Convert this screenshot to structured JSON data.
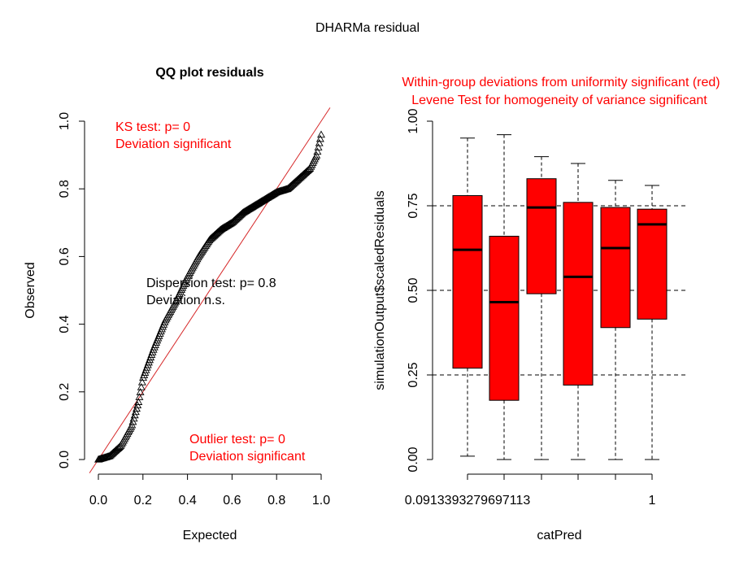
{
  "main_title": "DHARMa residual",
  "colors": {
    "axis": "#000000",
    "accent": "#ff0000",
    "box_fill": "#ff0000",
    "points": "#000000",
    "refline": "#d62728"
  },
  "chart_data": [
    {
      "type": "scatter",
      "title": "QQ plot residuals",
      "xlabel": "Expected",
      "ylabel": "Observed",
      "xlim": [
        0,
        1
      ],
      "ylim": [
        0,
        1
      ],
      "x_ticks": [
        "0.0",
        "0.2",
        "0.4",
        "0.6",
        "0.8",
        "1.0"
      ],
      "y_ticks": [
        "0.0",
        "0.2",
        "0.4",
        "0.6",
        "0.8",
        "1.0"
      ],
      "reference_line": "y = x",
      "marker": "triangle",
      "curve_points": [
        {
          "x": 0.0,
          "y": 0.0
        },
        {
          "x": 0.05,
          "y": 0.01
        },
        {
          "x": 0.1,
          "y": 0.04
        },
        {
          "x": 0.15,
          "y": 0.1
        },
        {
          "x": 0.18,
          "y": 0.17
        },
        {
          "x": 0.2,
          "y": 0.24
        },
        {
          "x": 0.25,
          "y": 0.33
        },
        {
          "x": 0.3,
          "y": 0.41
        },
        {
          "x": 0.35,
          "y": 0.47
        },
        {
          "x": 0.4,
          "y": 0.54
        },
        {
          "x": 0.45,
          "y": 0.6
        },
        {
          "x": 0.5,
          "y": 0.65
        },
        {
          "x": 0.55,
          "y": 0.68
        },
        {
          "x": 0.6,
          "y": 0.7
        },
        {
          "x": 0.65,
          "y": 0.73
        },
        {
          "x": 0.7,
          "y": 0.75
        },
        {
          "x": 0.75,
          "y": 0.77
        },
        {
          "x": 0.8,
          "y": 0.79
        },
        {
          "x": 0.85,
          "y": 0.8
        },
        {
          "x": 0.9,
          "y": 0.83
        },
        {
          "x": 0.95,
          "y": 0.86
        },
        {
          "x": 0.98,
          "y": 0.9
        },
        {
          "x": 1.0,
          "y": 0.96
        }
      ],
      "annotations": {
        "ks_line1": "KS test: p= 0",
        "ks_line2": "Deviation  significant",
        "dispersion_line1": "Dispersion test: p= 0.8",
        "dispersion_line2": "Deviation  n.s.",
        "outlier_line1": "Outlier test: p= 0",
        "outlier_line2": "Deviation  significant"
      }
    },
    {
      "type": "boxplot",
      "title_line1": "Within-group deviations from uniformity significant (red)",
      "title_line2": "Levene Test for homogeneity of variance significant",
      "xlabel": "catPred",
      "ylabel": "simulationOutput$scaledResiduals",
      "ylim": [
        0,
        1
      ],
      "y_ticks": [
        "0.00",
        "0.25",
        "0.50",
        "0.75",
        "1.00"
      ],
      "x_tick_labels": [
        "0.0913393279697113",
        "",
        "",
        "",
        "",
        "1"
      ],
      "reference_lines": [
        0.25,
        0.5,
        0.75
      ],
      "boxes": [
        {
          "whisker_low": 0.01,
          "q1": 0.27,
          "median": 0.62,
          "q3": 0.78,
          "whisker_high": 0.95
        },
        {
          "whisker_low": 0.0,
          "q1": 0.175,
          "median": 0.465,
          "q3": 0.66,
          "whisker_high": 0.96
        },
        {
          "whisker_low": 0.0,
          "q1": 0.49,
          "median": 0.745,
          "q3": 0.83,
          "whisker_high": 0.895
        },
        {
          "whisker_low": 0.0,
          "q1": 0.22,
          "median": 0.54,
          "q3": 0.76,
          "whisker_high": 0.875
        },
        {
          "whisker_low": 0.0,
          "q1": 0.39,
          "median": 0.625,
          "q3": 0.745,
          "whisker_high": 0.825
        },
        {
          "whisker_low": 0.0,
          "q1": 0.415,
          "median": 0.695,
          "q3": 0.74,
          "whisker_high": 0.81
        }
      ]
    }
  ]
}
